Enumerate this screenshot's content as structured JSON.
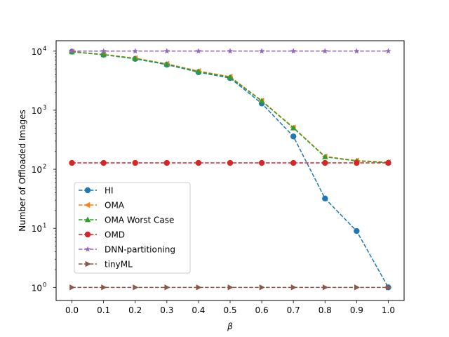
{
  "chart_data": {
    "type": "line",
    "title": "",
    "xlabel": "β",
    "ylabel": "Number of Offloaded Images",
    "yscale": "log",
    "xlim": [
      -0.05,
      1.05
    ],
    "ylim": [
      0.6,
      15000
    ],
    "x": [
      0.0,
      0.1,
      0.2,
      0.3,
      0.4,
      0.5,
      0.6,
      0.7,
      0.8,
      0.9,
      1.0
    ],
    "xticks": [
      "0.0",
      "0.1",
      "0.2",
      "0.3",
      "0.4",
      "0.5",
      "0.6",
      "0.7",
      "0.8",
      "0.9",
      "1.0"
    ],
    "yticks": [
      {
        "value": 1,
        "base": "10",
        "exp": "0"
      },
      {
        "value": 10,
        "base": "10",
        "exp": "1"
      },
      {
        "value": 100,
        "base": "10",
        "exp": "2"
      },
      {
        "value": 1000,
        "base": "10",
        "exp": "3"
      },
      {
        "value": 10000,
        "base": "10",
        "exp": "4"
      }
    ],
    "grid": false,
    "legend_position": "center-left",
    "series": [
      {
        "name": "HI",
        "color": "#1f77b4",
        "marker": "circle",
        "values": [
          9800,
          8700,
          7400,
          5900,
          4400,
          3500,
          1300,
          360,
          32,
          9,
          1
        ]
      },
      {
        "name": "OMA",
        "color": "#ff7f0e",
        "marker": "triangle-left",
        "values": [
          9800,
          8800,
          7600,
          6100,
          4600,
          3700,
          1450,
          510,
          165,
          140,
          132
        ]
      },
      {
        "name": "OMA Worst Case",
        "color": "#2ca02c",
        "marker": "triangle-up",
        "values": [
          9700,
          8700,
          7500,
          6000,
          4500,
          3600,
          1430,
          500,
          162,
          138,
          130
        ]
      },
      {
        "name": "OMD",
        "color": "#d62728",
        "marker": "circle",
        "values": [
          128,
          128,
          128,
          128,
          128,
          128,
          128,
          128,
          128,
          128,
          128
        ]
      },
      {
        "name": "DNN-partitioning",
        "color": "#9467bd",
        "marker": "star",
        "values": [
          10000,
          10000,
          10000,
          10000,
          10000,
          10000,
          10000,
          10000,
          10000,
          10000,
          10000
        ]
      },
      {
        "name": "tinyML",
        "color": "#8c564b",
        "marker": "triangle-right",
        "values": [
          1,
          1,
          1,
          1,
          1,
          1,
          1,
          1,
          1,
          1,
          1
        ]
      }
    ]
  }
}
